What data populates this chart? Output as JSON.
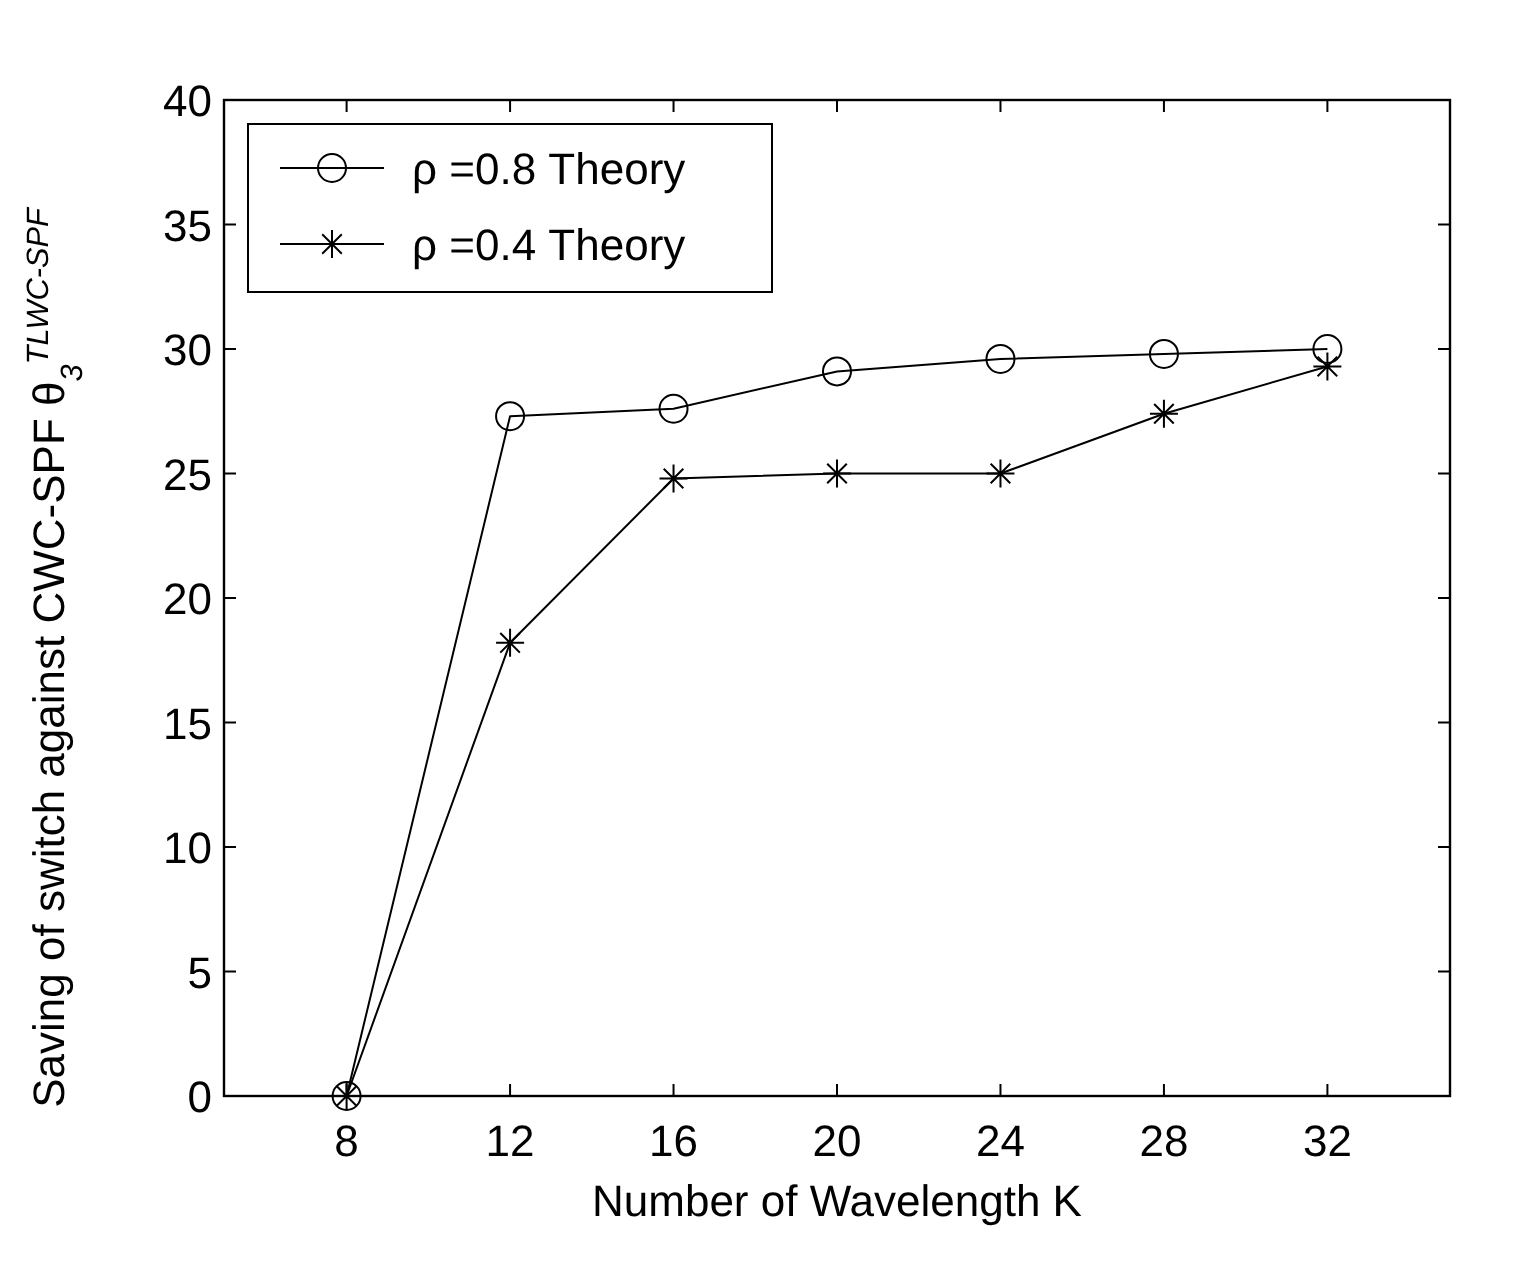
{
  "chart_data": {
    "type": "line",
    "xlabel": "Number of Wavelength K",
    "ylabel": "Saving of switch against CWC-SPF θ$_{3}$$^{TLWC-SPF}$",
    "x": [
      8,
      12,
      16,
      20,
      24,
      28,
      32
    ],
    "series": [
      {
        "name": "ρ =0.8 Theory",
        "color": "#000000",
        "marker": "circle",
        "values": [
          0,
          27.3,
          27.6,
          29.1,
          29.6,
          29.8,
          30.0
        ]
      },
      {
        "name": "ρ =0.4 Theory",
        "color": "#000000",
        "marker": "cross",
        "values": [
          0,
          18.2,
          24.8,
          25.0,
          25.0,
          27.4,
          29.3
        ]
      }
    ],
    "xlim": [
      5,
      35
    ],
    "xticks": [
      8,
      12,
      16,
      20,
      24,
      28,
      32
    ],
    "ylim": [
      0,
      40
    ],
    "yticks": [
      0,
      5,
      10,
      15,
      20,
      25,
      30,
      35,
      40
    ],
    "legend": "top left",
    "grid": false,
    "line_style": "solid"
  }
}
